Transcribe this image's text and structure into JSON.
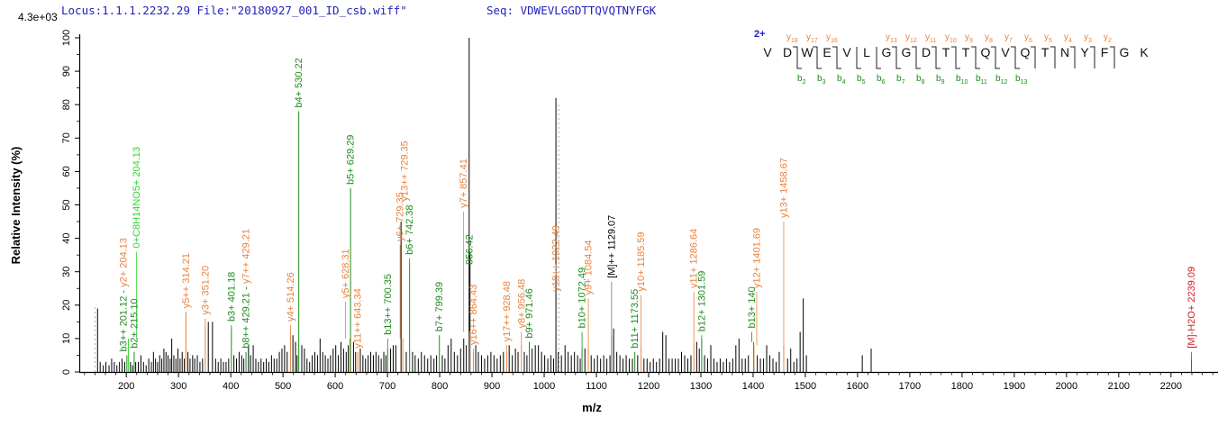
{
  "header": {
    "locus_file": "Locus:1.1.1.2232.29 File:\"20180927_001_ID_csb.wiff\"",
    "seq": "Seq: VDWEVLGGDTTQVQTNYFGK",
    "intensity_scale": "4.3e+03"
  },
  "colors": {
    "header_text": "#2222bb",
    "b_ion_green": "#1e8b1e",
    "y_ion_orange": "#e8823c",
    "internal_green": "#35d435",
    "precursor_red": "#cc2222",
    "precursor_gray": "#777777",
    "peak_black": "#000000",
    "marker_dash": "#aaaaaa"
  },
  "peptide_diagram": {
    "charge": "2+",
    "residues": [
      "V",
      "D",
      "W",
      "E",
      "V",
      "L",
      "G",
      "G",
      "D",
      "T",
      "T",
      "Q",
      "V",
      "Q",
      "T",
      "N",
      "Y",
      "F",
      "G",
      "K"
    ],
    "y_ions": [
      {
        "n": 18,
        "gap": 2
      },
      {
        "n": 17,
        "gap": 3
      },
      {
        "n": 16,
        "gap": 4
      },
      {
        "n": 13,
        "gap": 7
      },
      {
        "n": 12,
        "gap": 8
      },
      {
        "n": 11,
        "gap": 9
      },
      {
        "n": 10,
        "gap": 10
      },
      {
        "n": 9,
        "gap": 11
      },
      {
        "n": 8,
        "gap": 12
      },
      {
        "n": 7,
        "gap": 13
      },
      {
        "n": 6,
        "gap": 14
      },
      {
        "n": 5,
        "gap": 15
      },
      {
        "n": 4,
        "gap": 16
      },
      {
        "n": 3,
        "gap": 17
      },
      {
        "n": 2,
        "gap": 18
      }
    ],
    "b_ions": [
      {
        "n": 2,
        "gap": 2
      },
      {
        "n": 3,
        "gap": 3
      },
      {
        "n": 4,
        "gap": 4
      },
      {
        "n": 5,
        "gap": 5
      },
      {
        "n": 6,
        "gap": 6
      },
      {
        "n": 7,
        "gap": 7
      },
      {
        "n": 8,
        "gap": 8
      },
      {
        "n": 9,
        "gap": 9
      },
      {
        "n": 10,
        "gap": 10
      },
      {
        "n": 11,
        "gap": 11
      },
      {
        "n": 12,
        "gap": 12
      },
      {
        "n": 13,
        "gap": 13
      }
    ]
  },
  "chart_data": {
    "type": "bar",
    "subtype": "ms2-centroid-mass-spectrum",
    "xlabel": "m/z",
    "ylabel": "Relative  Intensity (%)",
    "base_peak_intensity": "4.3e+03",
    "x_range": [
      110,
      2290
    ],
    "y_range": [
      0,
      100
    ],
    "x_major_ticks": [
      200,
      300,
      400,
      500,
      600,
      700,
      800,
      900,
      1000,
      1100,
      1200,
      1300,
      1400,
      1500,
      1600,
      1700,
      1800,
      1900,
      2000,
      2100,
      2200
    ],
    "x_minor_step": 20,
    "y_ticks": [
      0,
      10,
      20,
      30,
      40,
      50,
      60,
      70,
      80,
      90,
      100
    ],
    "y_minor_step": 5,
    "markers": [
      {
        "mz": 140,
        "to": 20
      },
      {
        "mz": 1028,
        "to": 80
      }
    ],
    "labeled_peaks": [
      {
        "mz": 201.12,
        "i": 5,
        "from": 5,
        "dx": -4,
        "c": "b",
        "label": [
          {
            "t": "b3++ 201.12 - ",
            "c": "b"
          },
          {
            "t": "y2+ 204.13",
            "c": "y"
          }
        ]
      },
      {
        "mz": 204.13,
        "i": 10,
        "from": 36,
        "dx": 9,
        "c": "B",
        "label": [
          {
            "t": "0+C8H14NO5+ 204.13",
            "c": "B"
          }
        ]
      },
      {
        "mz": 215.1,
        "i": 6,
        "from": 6,
        "c": "b",
        "label": [
          {
            "t": "b2+ 215.10",
            "c": "b"
          }
        ]
      },
      {
        "mz": 314.21,
        "i": 18,
        "from": 18,
        "c": "y",
        "label": [
          {
            "t": "y5++ 314.21",
            "c": "y"
          }
        ]
      },
      {
        "mz": 351.2,
        "i": 14,
        "from": 16,
        "c": "y",
        "label": [
          {
            "t": "y3+ 351.20",
            "c": "y"
          }
        ]
      },
      {
        "mz": 401.18,
        "i": 13,
        "from": 14,
        "c": "b",
        "label": [
          {
            "t": "b3+ 401.18",
            "c": "b"
          }
        ]
      },
      {
        "mz": 429.21,
        "i": 6,
        "from": 6,
        "c": "b",
        "label": [
          {
            "t": "b8++ 429.21 - ",
            "c": "b"
          },
          {
            "t": "y7++ 429.21",
            "c": "y"
          }
        ]
      },
      {
        "mz": 514.26,
        "i": 12,
        "from": 14,
        "c": "y",
        "label": [
          {
            "t": "y4+ 514.26",
            "c": "y"
          }
        ]
      },
      {
        "mz": 530.22,
        "i": 78,
        "from": 78,
        "c": "b",
        "label": [
          {
            "t": "b4+ 530.22",
            "c": "b"
          }
        ]
      },
      {
        "mz": 628.31,
        "i": 10,
        "from": 21,
        "dx": -5,
        "c": "y",
        "label": [
          {
            "t": "y5+ 628.31",
            "c": "y"
          }
        ]
      },
      {
        "mz": 629.29,
        "i": 55,
        "from": 55,
        "c": "b",
        "label": [
          {
            "t": "b5+ 629.29",
            "c": "b"
          }
        ]
      },
      {
        "mz": 643.34,
        "i": 6,
        "from": 6,
        "c": "y",
        "label": [
          {
            "t": "y11++ 643.34",
            "c": "y"
          }
        ]
      },
      {
        "mz": 700.35,
        "i": 7,
        "from": 10,
        "c": "b",
        "label": [
          {
            "t": "b13++ 700.35",
            "c": "b"
          }
        ]
      },
      {
        "mz": 729.35,
        "i": 10,
        "from": 38,
        "dx": -3,
        "c": "y",
        "label": [
          {
            "t": "y6+ 729.35",
            "c": "y"
          }
        ]
      },
      {
        "mz": 733,
        "i": 0,
        "from": 50,
        "c": "y",
        "label": [
          {
            "t": "y13++ 729.35",
            "c": "y"
          }
        ]
      },
      {
        "mz": 742.38,
        "i": 33,
        "from": 34,
        "c": "b",
        "label": [
          {
            "t": "b6+ 742.38",
            "c": "b"
          }
        ]
      },
      {
        "mz": 799.39,
        "i": 11,
        "from": 11,
        "c": "b",
        "label": [
          {
            "t": "b7+ 799.39",
            "c": "b"
          }
        ]
      },
      {
        "mz": 856.42,
        "i": 100,
        "from": 31,
        "c": "k",
        "label": [
          {
            "t": "856.42",
            "c": "b"
          }
        ]
      },
      {
        "mz": 857.41,
        "i": 12,
        "from": 48,
        "dx": -7,
        "c": "y",
        "label": [
          {
            "t": "y7+ 857.41",
            "c": "y"
          }
        ]
      },
      {
        "mz": 864.43,
        "i": 6,
        "from": 7,
        "c": "y",
        "label": [
          {
            "t": "y16++ 864.43",
            "c": "y"
          }
        ]
      },
      {
        "mz": 928.48,
        "i": 6,
        "from": 8,
        "c": "y",
        "label": [
          {
            "t": "y17++ 928.48",
            "c": "y"
          }
        ]
      },
      {
        "mz": 956.48,
        "i": 8,
        "from": 12,
        "c": "y",
        "label": [
          {
            "t": "y8+ 956.48",
            "c": "y"
          }
        ]
      },
      {
        "mz": 971.46,
        "i": 9,
        "from": 9,
        "c": "b",
        "label": [
          {
            "t": "b9+ 971.46",
            "c": "b"
          }
        ]
      },
      {
        "mz": 1022.49,
        "i": 82,
        "from": 23,
        "c": "k",
        "label": [
          {
            "t": "y18++ 1022.49",
            "c": "y"
          }
        ]
      },
      {
        "mz": 1072.49,
        "i": 7,
        "from": 12,
        "c": "b",
        "label": [
          {
            "t": "b10+ 1072.49",
            "c": "b"
          }
        ]
      },
      {
        "mz": 1084.54,
        "i": 7,
        "from": 22,
        "c": "y",
        "label": [
          {
            "t": "y9+ 1084.54",
            "c": "y"
          }
        ]
      },
      {
        "mz": 1129.07,
        "i": 11,
        "from": 27,
        "c": "M",
        "label": [
          {
            "t": "[M]++ 1129.07",
            "c": "k"
          }
        ]
      },
      {
        "mz": 1173.55,
        "i": 6,
        "from": 6,
        "c": "b",
        "label": [
          {
            "t": "b11+ 1173.55",
            "c": "b"
          }
        ]
      },
      {
        "mz": 1185.59,
        "i": 8,
        "from": 23,
        "c": "y",
        "label": [
          {
            "t": "y10+ 1185.59",
            "c": "y"
          }
        ]
      },
      {
        "mz": 1286.64,
        "i": 8,
        "from": 24,
        "c": "y",
        "label": [
          {
            "t": "y11+ 1286.64",
            "c": "y"
          }
        ]
      },
      {
        "mz": 1301.59,
        "i": 10,
        "from": 11,
        "c": "b",
        "label": [
          {
            "t": "b12+ 1301.59",
            "c": "b"
          }
        ]
      },
      {
        "mz": 1400.8,
        "i": 9,
        "from": 12,
        "dx": -2,
        "c": "b",
        "label": [
          {
            "t": "b13+ 140",
            "c": "b"
          }
        ]
      },
      {
        "mz": 1401.69,
        "i": 8,
        "from": 24,
        "dx": 3,
        "c": "y",
        "label": [
          {
            "t": "y12+ 1401.69",
            "c": "y"
          }
        ]
      },
      {
        "mz": 1458.67,
        "i": 8,
        "from": 45,
        "c": "y",
        "label": [
          {
            "t": "y13+ 1458.67",
            "c": "y"
          }
        ]
      },
      {
        "mz": 2239.09,
        "i": 4,
        "from": 6,
        "c": "r",
        "label": [
          {
            "t": "[M]-H2O+ 2239.09",
            "c": "r"
          }
        ]
      }
    ],
    "unlabeled_peaks": [
      [
        145,
        19
      ],
      [
        150,
        3
      ],
      [
        156,
        2
      ],
      [
        161,
        3
      ],
      [
        167,
        2
      ],
      [
        172,
        4
      ],
      [
        177,
        3
      ],
      [
        182,
        2
      ],
      [
        187,
        3
      ],
      [
        192,
        4
      ],
      [
        197,
        3
      ],
      [
        208,
        3
      ],
      [
        212,
        2
      ],
      [
        218,
        3
      ],
      [
        223,
        3
      ],
      [
        228,
        5
      ],
      [
        233,
        3
      ],
      [
        238,
        2
      ],
      [
        243,
        4
      ],
      [
        248,
        3
      ],
      [
        252,
        6
      ],
      [
        256,
        4
      ],
      [
        260,
        3
      ],
      [
        264,
        5
      ],
      [
        268,
        4
      ],
      [
        272,
        7
      ],
      [
        276,
        6
      ],
      [
        280,
        5
      ],
      [
        284,
        4
      ],
      [
        287,
        10
      ],
      [
        291,
        5
      ],
      [
        295,
        4
      ],
      [
        299,
        7
      ],
      [
        303,
        4
      ],
      [
        307,
        6
      ],
      [
        311,
        4
      ],
      [
        318,
        6
      ],
      [
        322,
        4
      ],
      [
        327,
        5
      ],
      [
        331,
        4
      ],
      [
        336,
        5
      ],
      [
        341,
        3
      ],
      [
        346,
        4
      ],
      [
        357,
        15
      ],
      [
        365,
        15
      ],
      [
        371,
        4
      ],
      [
        376,
        3
      ],
      [
        381,
        4
      ],
      [
        386,
        3
      ],
      [
        391,
        3
      ],
      [
        396,
        4
      ],
      [
        406,
        5
      ],
      [
        411,
        4
      ],
      [
        416,
        6
      ],
      [
        421,
        5
      ],
      [
        425,
        4
      ],
      [
        434,
        8
      ],
      [
        438,
        5
      ],
      [
        443,
        8
      ],
      [
        448,
        4
      ],
      [
        453,
        3
      ],
      [
        458,
        4
      ],
      [
        463,
        3
      ],
      [
        468,
        4
      ],
      [
        473,
        3
      ],
      [
        478,
        5
      ],
      [
        483,
        4
      ],
      [
        488,
        4
      ],
      [
        493,
        6
      ],
      [
        498,
        7
      ],
      [
        503,
        8
      ],
      [
        508,
        6
      ],
      [
        519,
        11
      ],
      [
        524,
        9
      ],
      [
        527,
        5
      ],
      [
        536,
        8
      ],
      [
        541,
        7
      ],
      [
        546,
        4
      ],
      [
        551,
        3
      ],
      [
        556,
        5
      ],
      [
        561,
        6
      ],
      [
        566,
        5
      ],
      [
        571,
        10
      ],
      [
        576,
        6
      ],
      [
        581,
        5
      ],
      [
        586,
        4
      ],
      [
        591,
        5
      ],
      [
        596,
        7
      ],
      [
        601,
        8
      ],
      [
        606,
        5
      ],
      [
        611,
        9
      ],
      [
        616,
        7
      ],
      [
        621,
        6
      ],
      [
        625,
        8
      ],
      [
        635,
        9
      ],
      [
        639,
        6
      ],
      [
        648,
        7
      ],
      [
        653,
        5
      ],
      [
        658,
        4
      ],
      [
        663,
        5
      ],
      [
        668,
        6
      ],
      [
        673,
        5
      ],
      [
        678,
        6
      ],
      [
        683,
        5
      ],
      [
        688,
        4
      ],
      [
        693,
        6
      ],
      [
        697,
        5
      ],
      [
        706,
        7
      ],
      [
        711,
        8
      ],
      [
        716,
        8
      ],
      [
        726,
        45
      ],
      [
        736,
        6
      ],
      [
        748,
        6
      ],
      [
        753,
        5
      ],
      [
        759,
        4
      ],
      [
        765,
        6
      ],
      [
        771,
        5
      ],
      [
        777,
        4
      ],
      [
        783,
        5
      ],
      [
        789,
        4
      ],
      [
        794,
        5
      ],
      [
        805,
        5
      ],
      [
        810,
        4
      ],
      [
        816,
        8
      ],
      [
        822,
        10
      ],
      [
        828,
        6
      ],
      [
        834,
        5
      ],
      [
        840,
        7
      ],
      [
        846,
        10
      ],
      [
        851,
        8
      ],
      [
        858,
        36
      ],
      [
        869,
        8
      ],
      [
        874,
        6
      ],
      [
        880,
        5
      ],
      [
        886,
        4
      ],
      [
        892,
        5
      ],
      [
        898,
        6
      ],
      [
        904,
        5
      ],
      [
        910,
        4
      ],
      [
        916,
        5
      ],
      [
        922,
        6
      ],
      [
        933,
        8
      ],
      [
        939,
        5
      ],
      [
        945,
        7
      ],
      [
        950,
        6
      ],
      [
        962,
        6
      ],
      [
        967,
        5
      ],
      [
        977,
        7
      ],
      [
        983,
        8
      ],
      [
        989,
        8
      ],
      [
        995,
        6
      ],
      [
        1001,
        5
      ],
      [
        1007,
        4
      ],
      [
        1013,
        5
      ],
      [
        1018,
        4
      ],
      [
        1027,
        6
      ],
      [
        1033,
        5
      ],
      [
        1040,
        8
      ],
      [
        1046,
        6
      ],
      [
        1052,
        5
      ],
      [
        1058,
        6
      ],
      [
        1064,
        5
      ],
      [
        1069,
        4
      ],
      [
        1078,
        7
      ],
      [
        1090,
        5
      ],
      [
        1096,
        4
      ],
      [
        1102,
        5
      ],
      [
        1108,
        4
      ],
      [
        1114,
        5
      ],
      [
        1120,
        4
      ],
      [
        1126,
        5
      ],
      [
        1133,
        13
      ],
      [
        1139,
        6
      ],
      [
        1145,
        5
      ],
      [
        1151,
        4
      ],
      [
        1157,
        5
      ],
      [
        1163,
        4
      ],
      [
        1169,
        4
      ],
      [
        1179,
        5
      ],
      [
        1191,
        4
      ],
      [
        1197,
        4
      ],
      [
        1203,
        3
      ],
      [
        1209,
        4
      ],
      [
        1215,
        3
      ],
      [
        1221,
        4
      ],
      [
        1227,
        12
      ],
      [
        1233,
        11
      ],
      [
        1239,
        4
      ],
      [
        1245,
        4
      ],
      [
        1251,
        4
      ],
      [
        1257,
        4
      ],
      [
        1263,
        6
      ],
      [
        1269,
        5
      ],
      [
        1275,
        4
      ],
      [
        1281,
        5
      ],
      [
        1292,
        9
      ],
      [
        1297,
        7
      ],
      [
        1307,
        5
      ],
      [
        1313,
        4
      ],
      [
        1319,
        8
      ],
      [
        1325,
        4
      ],
      [
        1331,
        3
      ],
      [
        1337,
        4
      ],
      [
        1343,
        3
      ],
      [
        1349,
        4
      ],
      [
        1355,
        3
      ],
      [
        1361,
        4
      ],
      [
        1367,
        8
      ],
      [
        1373,
        10
      ],
      [
        1379,
        4
      ],
      [
        1385,
        4
      ],
      [
        1391,
        5
      ],
      [
        1408,
        5
      ],
      [
        1414,
        4
      ],
      [
        1420,
        4
      ],
      [
        1426,
        8
      ],
      [
        1432,
        5
      ],
      [
        1438,
        4
      ],
      [
        1444,
        3
      ],
      [
        1450,
        6
      ],
      [
        1466,
        4
      ],
      [
        1472,
        7
      ],
      [
        1478,
        3
      ],
      [
        1484,
        4
      ],
      [
        1490,
        12
      ],
      [
        1496,
        22
      ],
      [
        1502,
        5
      ],
      [
        1609,
        5
      ],
      [
        1626,
        7
      ]
    ]
  }
}
